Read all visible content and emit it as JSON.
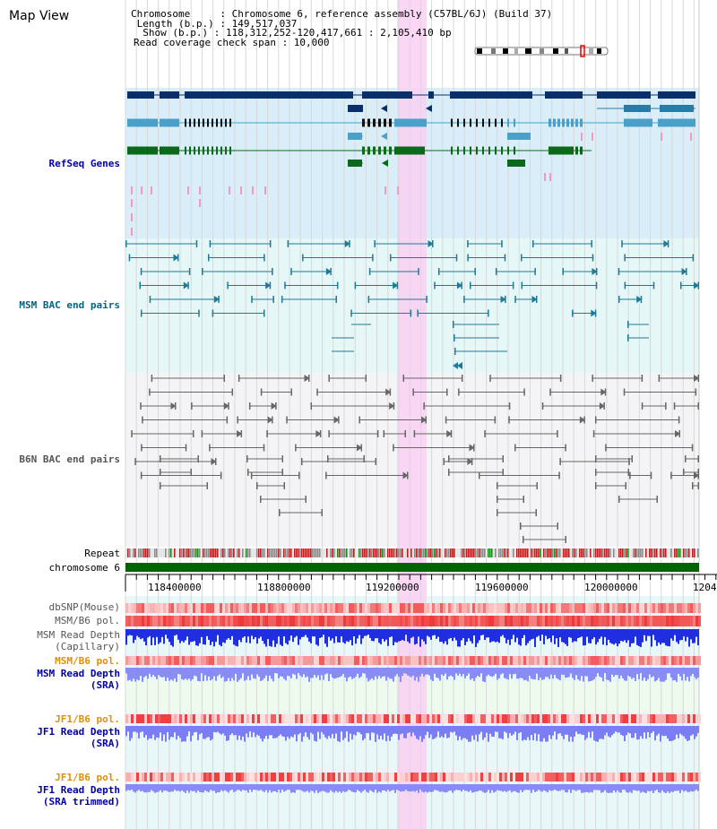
{
  "app": {
    "title": "Map View"
  },
  "info": {
    "chromosome_line": "Chromosome     : Chromosome 6, reference assembly (C57BL/6J) (Build 37)",
    "length_line": " Length (b.p.) : 149,517,037",
    "show_line": "  Show (b.p.) : 118,312,252-120,417,661 : 2,105,410 bp",
    "coverage_line": "Read coverage check span : 10,000"
  },
  "tracks": {
    "refseq": "RefSeq Genes",
    "msm_bac": "MSM BAC end pairs",
    "b6n_bac": "B6N BAC end pairs",
    "repeat": "Repeat",
    "chromosome": "chromosome 6",
    "dbsnp": "dbSNP(Mouse)",
    "msm_b6_pol_1": "MSM/B6 pol.",
    "msm_read_depth_cap_1": "MSM Read Depth",
    "msm_read_depth_cap_2": "(Capillary)",
    "msm_b6_pol_2": "MSM/B6 pol.",
    "msm_read_depth_sra_1": "MSM Read Depth",
    "msm_read_depth_sra_2": "(SRA)",
    "jf1_b6_pol_1": "JF1/B6 pol.",
    "jf1_read_depth_sra_1": "JF1 Read Depth",
    "jf1_read_depth_sra_2": "(SRA)",
    "jf1_b6_pol_2": "JF1/B6 pol.",
    "jf1_read_depth_trim_1": "JF1 Read Depth",
    "jf1_read_depth_trim_2": "(SRA trimmed)"
  },
  "axis": {
    "ticks": [
      "118400000",
      "118800000",
      "119200000",
      "119600000",
      "120000000",
      "1204"
    ]
  },
  "colors": {
    "refseq_label": "#0000aa",
    "msm_label": "#006680",
    "b6n_label": "#555555",
    "orange_label": "#e09000",
    "blue_label": "#0000aa",
    "highlight": "#f9d0f3",
    "chromosome_bar": "#006400"
  }
}
